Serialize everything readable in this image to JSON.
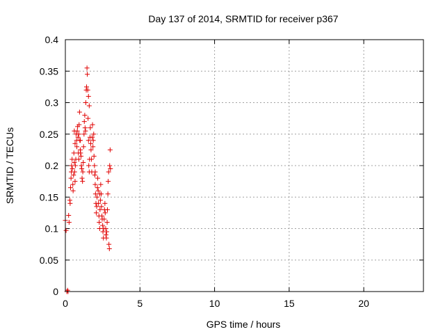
{
  "chart_data": {
    "type": "scatter",
    "title": "Day 137 of 2014, SRMTID for receiver p367",
    "xlabel": "GPS time / hours",
    "ylabel": "SRMTID / TECUs",
    "xlim": [
      0,
      24
    ],
    "ylim": [
      0,
      0.4
    ],
    "xticks": [
      0,
      5,
      10,
      15,
      20
    ],
    "xtick_labels": [
      "0",
      "5",
      "10",
      "15",
      "20"
    ],
    "yticks": [
      0,
      0.05,
      0.1,
      0.15,
      0.2,
      0.25,
      0.3,
      0.35,
      0.4
    ],
    "ytick_labels": [
      "0",
      "0.05",
      "0.1",
      "0.15",
      "0.2",
      "0.25",
      "0.3",
      "0.35",
      "0.4"
    ],
    "grid": true,
    "marker": "+",
    "color": "#e00000",
    "series": [
      {
        "name": "SRMTID",
        "points": [
          [
            0.0,
            0.113
          ],
          [
            0.05,
            0.097
          ],
          [
            0.1,
            0.0
          ],
          [
            0.15,
            0.002
          ],
          [
            0.18,
            0.0
          ],
          [
            0.22,
            0.121
          ],
          [
            0.25,
            0.11
          ],
          [
            0.3,
            0.145
          ],
          [
            0.32,
            0.14
          ],
          [
            0.35,
            0.165
          ],
          [
            0.38,
            0.18
          ],
          [
            0.4,
            0.19
          ],
          [
            0.42,
            0.2
          ],
          [
            0.45,
            0.21
          ],
          [
            0.47,
            0.195
          ],
          [
            0.5,
            0.17
          ],
          [
            0.52,
            0.16
          ],
          [
            0.55,
            0.185
          ],
          [
            0.57,
            0.22
          ],
          [
            0.6,
            0.205
          ],
          [
            0.62,
            0.19
          ],
          [
            0.65,
            0.175
          ],
          [
            0.67,
            0.2
          ],
          [
            0.7,
            0.21
          ],
          [
            0.72,
            0.25
          ],
          [
            0.75,
            0.24
          ],
          [
            0.77,
            0.23
          ],
          [
            0.8,
            0.255
          ],
          [
            0.82,
            0.262
          ],
          [
            0.85,
            0.245
          ],
          [
            0.87,
            0.22
          ],
          [
            0.9,
            0.21
          ],
          [
            0.92,
            0.265
          ],
          [
            0.95,
            0.285
          ],
          [
            0.97,
            0.24
          ],
          [
            1.0,
            0.225
          ],
          [
            1.02,
            0.22
          ],
          [
            1.05,
            0.215
          ],
          [
            1.07,
            0.2
          ],
          [
            1.1,
            0.195
          ],
          [
            1.12,
            0.18
          ],
          [
            1.15,
            0.175
          ],
          [
            1.17,
            0.19
          ],
          [
            1.2,
            0.205
          ],
          [
            1.22,
            0.23
          ],
          [
            1.25,
            0.25
          ],
          [
            1.27,
            0.27
          ],
          [
            1.3,
            0.28
          ],
          [
            1.32,
            0.26
          ],
          [
            1.35,
            0.255
          ],
          [
            1.37,
            0.3
          ],
          [
            1.4,
            0.32
          ],
          [
            1.42,
            0.325
          ],
          [
            1.45,
            0.355
          ],
          [
            1.47,
            0.345
          ],
          [
            1.5,
            0.32
          ],
          [
            1.52,
            0.275
          ],
          [
            1.55,
            0.24
          ],
          [
            1.57,
            0.2
          ],
          [
            1.6,
            0.19
          ],
          [
            1.62,
            0.21
          ],
          [
            1.65,
            0.245
          ],
          [
            1.67,
            0.26
          ],
          [
            1.7,
            0.235
          ],
          [
            1.72,
            0.225
          ],
          [
            1.75,
            0.21
          ],
          [
            1.77,
            0.19
          ],
          [
            1.8,
            0.245
          ],
          [
            1.82,
            0.265
          ],
          [
            1.85,
            0.23
          ],
          [
            1.87,
            0.24
          ],
          [
            1.9,
            0.25
          ],
          [
            1.92,
            0.215
          ],
          [
            1.95,
            0.2
          ],
          [
            1.97,
            0.185
          ],
          [
            2.0,
            0.17
          ],
          [
            2.02,
            0.155
          ],
          [
            2.05,
            0.14
          ],
          [
            2.07,
            0.125
          ],
          [
            2.1,
            0.135
          ],
          [
            2.12,
            0.15
          ],
          [
            2.15,
            0.165
          ],
          [
            2.17,
            0.18
          ],
          [
            2.2,
            0.16
          ],
          [
            2.22,
            0.14
          ],
          [
            2.25,
            0.12
          ],
          [
            2.27,
            0.11
          ],
          [
            2.3,
            0.1
          ],
          [
            2.32,
            0.13
          ],
          [
            2.35,
            0.145
          ],
          [
            2.37,
            0.17
          ],
          [
            2.4,
            0.155
          ],
          [
            2.42,
            0.135
          ],
          [
            2.45,
            0.12
          ],
          [
            2.47,
            0.115
          ],
          [
            2.5,
            0.105
          ],
          [
            2.52,
            0.095
          ],
          [
            2.55,
            0.085
          ],
          [
            2.57,
            0.1
          ],
          [
            2.6,
            0.115
          ],
          [
            2.62,
            0.13
          ],
          [
            2.65,
            0.14
          ],
          [
            2.67,
            0.125
          ],
          [
            2.7,
            0.1
          ],
          [
            2.72,
            0.09
          ],
          [
            2.75,
            0.085
          ],
          [
            2.77,
            0.095
          ],
          [
            2.8,
            0.11
          ],
          [
            2.82,
            0.13
          ],
          [
            2.85,
            0.155
          ],
          [
            2.87,
            0.175
          ],
          [
            2.9,
            0.19
          ],
          [
            2.92,
            0.075
          ],
          [
            2.95,
            0.068
          ],
          [
            2.97,
            0.2
          ],
          [
            3.0,
            0.225
          ],
          [
            3.02,
            0.195
          ],
          [
            1.55,
            0.31
          ],
          [
            1.6,
            0.295
          ],
          [
            0.6,
            0.255
          ],
          [
            0.65,
            0.235
          ],
          [
            0.9,
            0.25
          ],
          [
            1.0,
            0.24
          ],
          [
            2.0,
            0.19
          ],
          [
            2.3,
            0.155
          ]
        ]
      }
    ]
  }
}
